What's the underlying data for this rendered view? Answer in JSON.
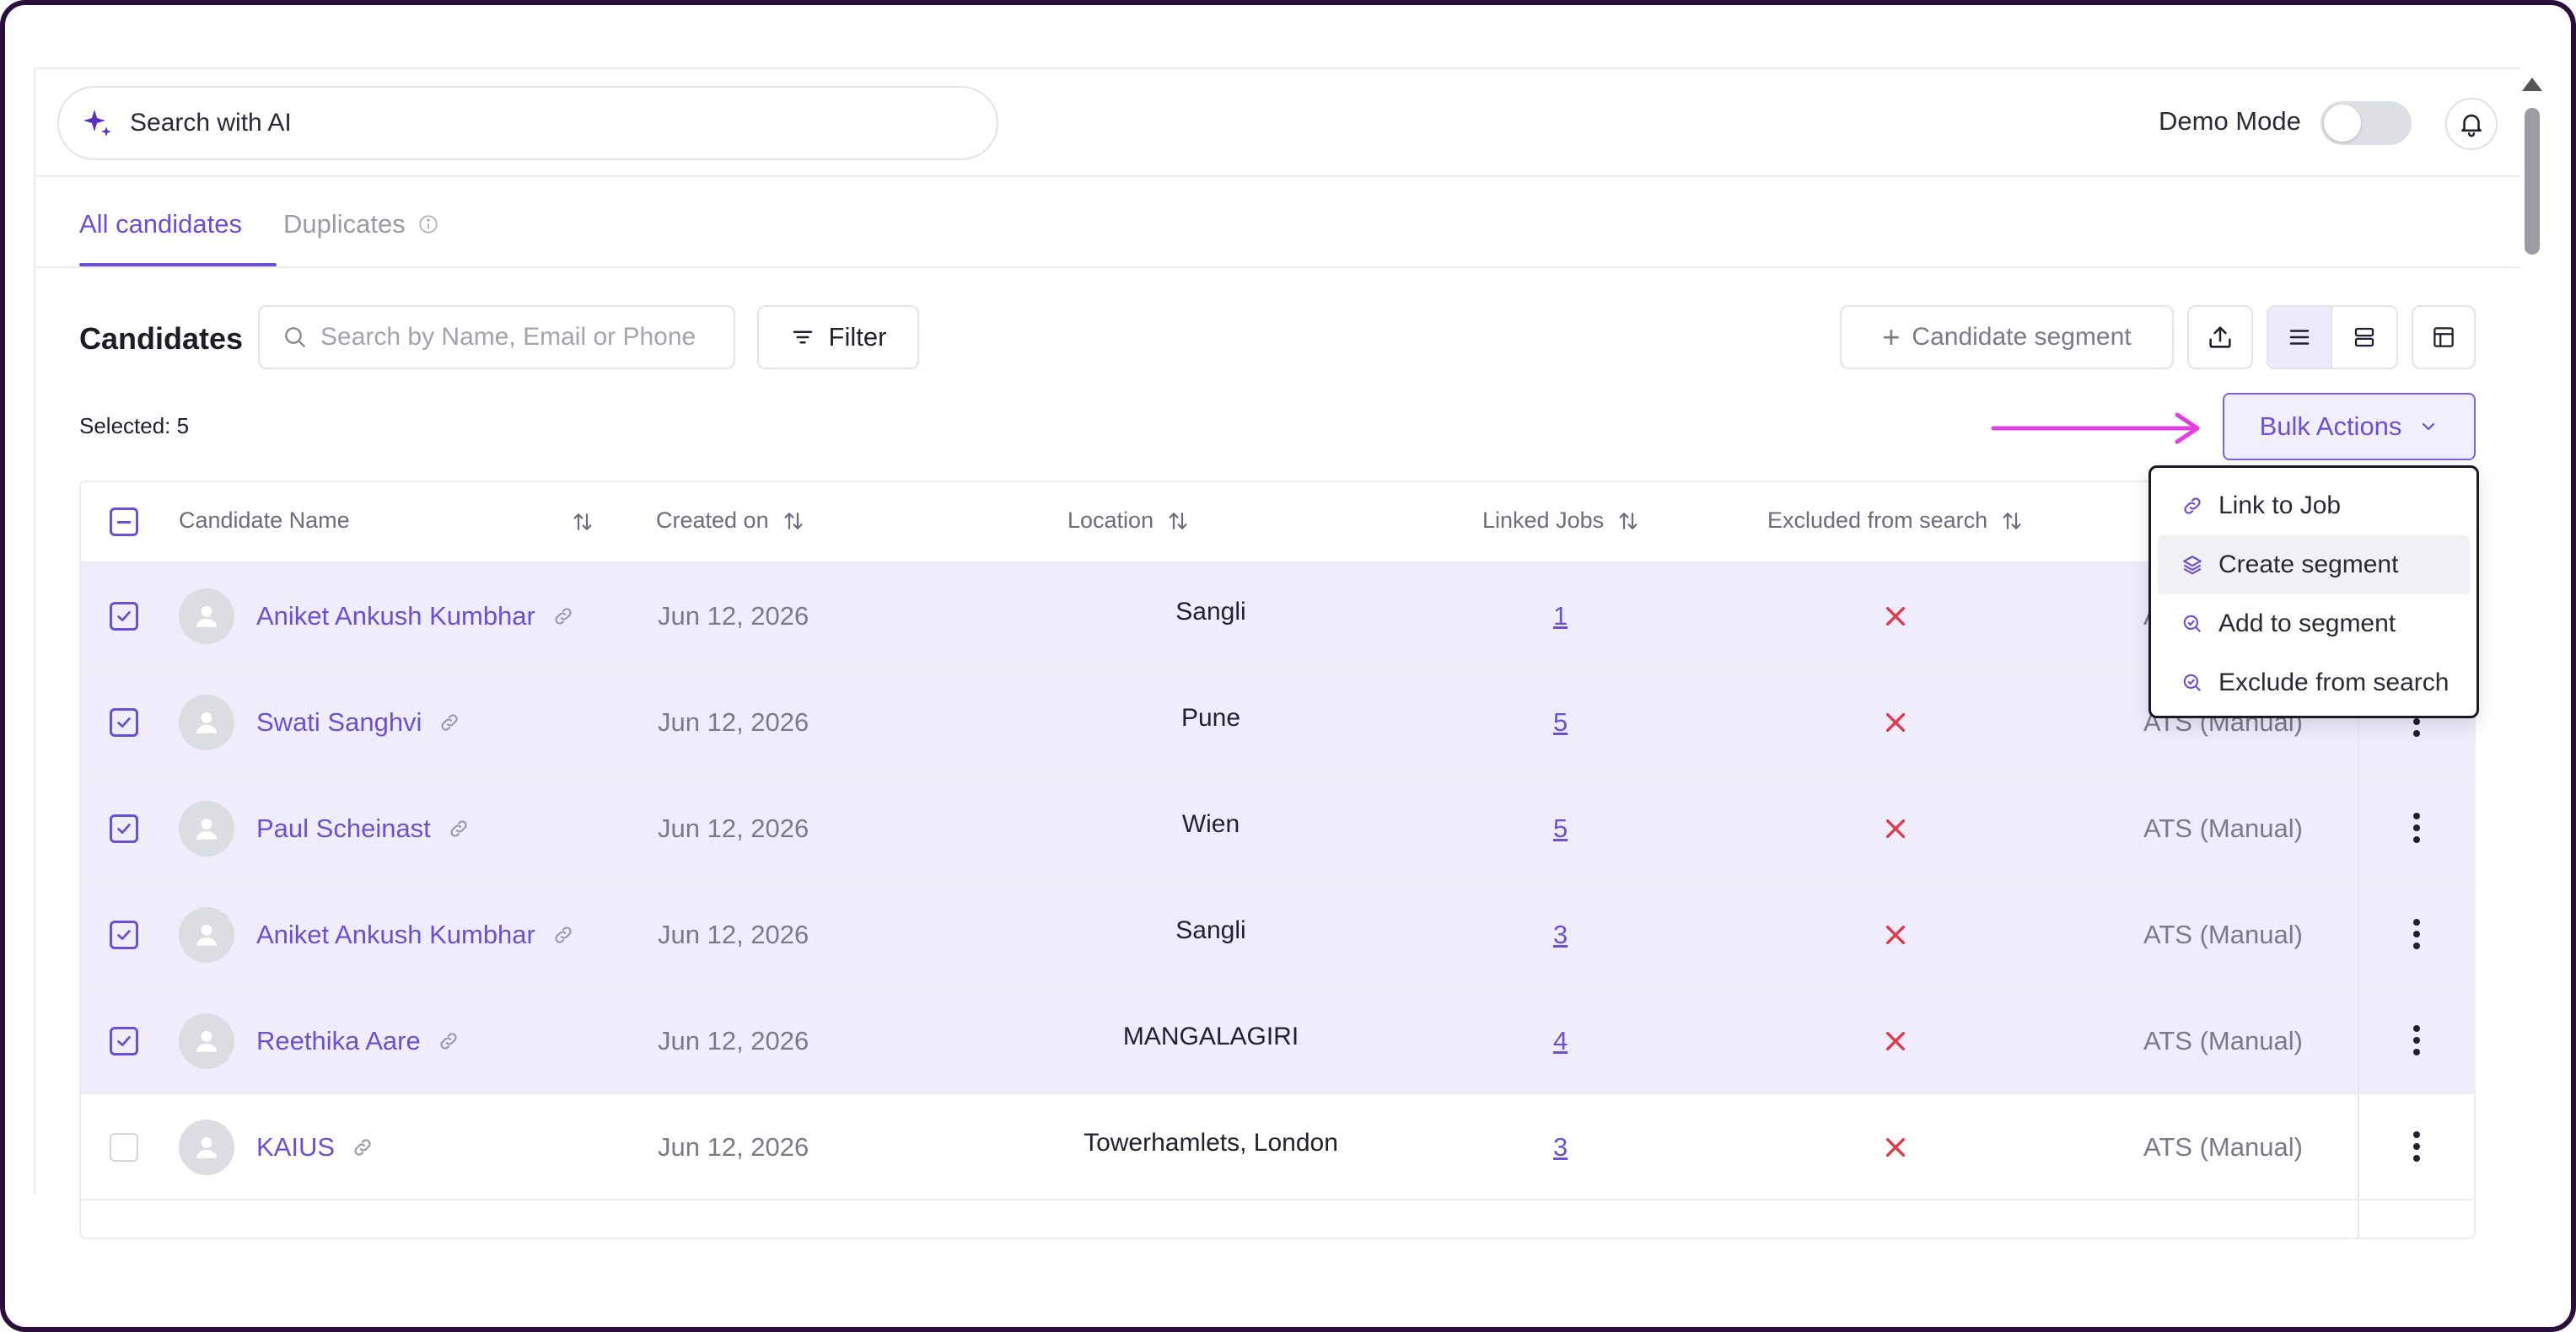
{
  "header": {
    "search_ai_label": "Search with AI",
    "demo_mode_label": "Demo Mode",
    "demo_mode_on": false
  },
  "tabs": {
    "all": "All candidates",
    "duplicates": "Duplicates"
  },
  "toolbar": {
    "title": "Candidates",
    "search_placeholder": "Search by Name, Email or Phone",
    "filter_label": "Filter",
    "segment_label": "Candidate segment",
    "selected_text": "Selected: 5",
    "bulk_actions_label": "Bulk Actions"
  },
  "table": {
    "headers": {
      "name": "Candidate Name",
      "created": "Created on",
      "location": "Location",
      "linked_jobs": "Linked Jobs",
      "excluded": "Excluded from search"
    },
    "rows": [
      {
        "name": "Aniket Ankush Kumbhar",
        "created": "Jun 12, 2026",
        "location": "Sangli",
        "jobs": "1",
        "source": "ATS (Manual)",
        "selected": true
      },
      {
        "name": "Swati Sanghvi",
        "created": "Jun 12, 2026",
        "location": "Pune",
        "jobs": "5",
        "source": "ATS (Manual)",
        "selected": true
      },
      {
        "name": "Paul Scheinast",
        "created": "Jun 12, 2026",
        "location": "Wien",
        "jobs": "5",
        "source": "ATS (Manual)",
        "selected": true
      },
      {
        "name": "Aniket Ankush Kumbhar",
        "created": "Jun 12, 2026",
        "location": "Sangli",
        "jobs": "3",
        "source": "ATS (Manual)",
        "selected": true
      },
      {
        "name": "Reethika Aare",
        "created": "Jun 12, 2026",
        "location": "MANGALAGIRI",
        "jobs": "4",
        "source": "ATS (Manual)",
        "selected": true
      },
      {
        "name": "KAIUS",
        "created": "Jun 12, 2026",
        "location": "Towerhamlets, London",
        "jobs": "3",
        "source": "ATS (Manual)",
        "selected": false
      }
    ]
  },
  "bulk_menu": {
    "items": [
      "Link to Job",
      "Create segment",
      "Add to segment",
      "Exclude from search"
    ]
  },
  "colors": {
    "accent": "#6d4fd6",
    "selected_row": "#efedfb",
    "excluded_x": "#e23a4a",
    "annotation_arrow": "#e040e0"
  }
}
